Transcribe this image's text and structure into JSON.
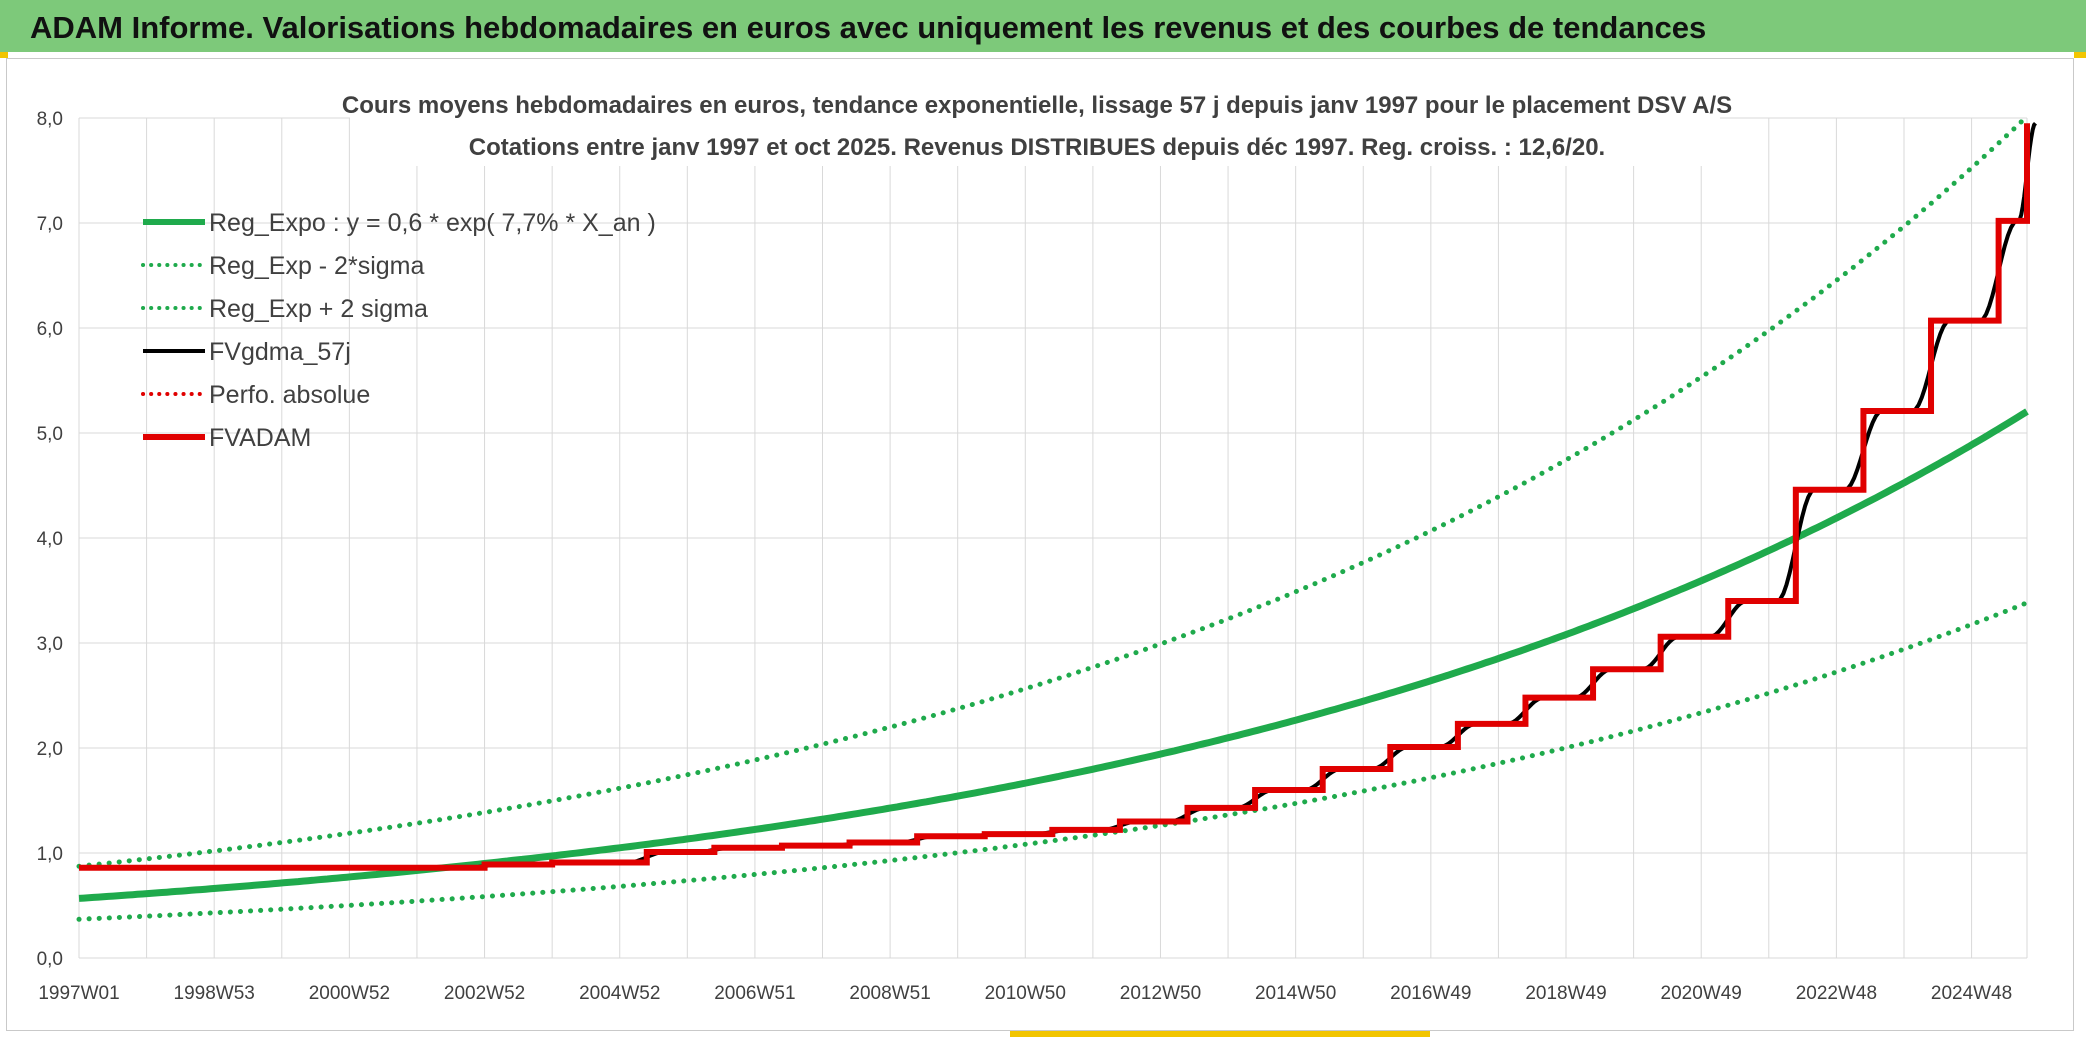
{
  "banner": {
    "title": "ADAM Informe. Valorisations hebdomadaires en euros avec uniquement les revenus et des courbes de tendances"
  },
  "chart_data": {
    "type": "line",
    "title": "Cours moyens hebdomadaires en euros, tendance exponentielle, lissage 57 j depuis janv 1997 pour le placement DSV A/S",
    "subtitle": "Cotations entre janv 1997 et oct 2025. Revenus DISTRIBUES depuis déc 1997. Reg. croiss. : 12,6/20.",
    "xlabel": "",
    "ylabel": "",
    "xlim": [
      1997.0,
      2025.82
    ],
    "ylim": [
      0,
      8
    ],
    "y_ticks": [
      "0,0",
      "1,0",
      "2,0",
      "3,0",
      "4,0",
      "5,0",
      "6,0",
      "7,0",
      "8,0"
    ],
    "x_ticks": [
      {
        "label": "1997W01",
        "x": 1997.0
      },
      {
        "label": "1998W53",
        "x": 1999.0
      },
      {
        "label": "2000W52",
        "x": 2001.0
      },
      {
        "label": "2002W52",
        "x": 2003.0
      },
      {
        "label": "2004W52",
        "x": 2005.0
      },
      {
        "label": "2006W51",
        "x": 2007.0
      },
      {
        "label": "2008W51",
        "x": 2009.0
      },
      {
        "label": "2010W50",
        "x": 2011.0
      },
      {
        "label": "2012W50",
        "x": 2013.0
      },
      {
        "label": "2014W50",
        "x": 2015.0
      },
      {
        "label": "2016W49",
        "x": 2017.0
      },
      {
        "label": "2018W49",
        "x": 2019.0
      },
      {
        "label": "2020W49",
        "x": 2021.0
      },
      {
        "label": "2022W48",
        "x": 2023.0
      },
      {
        "label": "2024W48",
        "x": 2025.0
      }
    ],
    "grid": true,
    "legend_position": "top-left",
    "regression": {
      "a": 0.5674,
      "rate": 0.0769,
      "lower_factor": 0.65,
      "upper_factor": 1.54
    },
    "series": [
      {
        "name": "Reg_Expo : y = 0,6 * exp( 7,7% *  X_an )",
        "color": "#1faa4c",
        "style": "solid-thick",
        "kind": "reg"
      },
      {
        "name": "Reg_Exp - 2*sigma",
        "color": "#1faa4c",
        "style": "dotted",
        "kind": "reg_low"
      },
      {
        "name": "Reg_Exp + 2 sigma",
        "color": "#1faa4c",
        "style": "dotted",
        "kind": "reg_high"
      },
      {
        "name": "FVgdma_57j",
        "color": "#000000",
        "style": "solid",
        "kind": "smoothed"
      },
      {
        "name": "Perfo. absolue",
        "color": "#e00000",
        "style": "dotted",
        "kind": "perf"
      },
      {
        "name": "FVADAM",
        "color": "#e00000",
        "style": "solid-thick",
        "kind": "step"
      }
    ],
    "fvadam_steps": [
      {
        "x": 1997.0,
        "y": 0.86
      },
      {
        "x": 2003.0,
        "y": 0.89
      },
      {
        "x": 2004.0,
        "y": 0.91
      },
      {
        "x": 2005.4,
        "y": 1.01
      },
      {
        "x": 2006.4,
        "y": 1.05
      },
      {
        "x": 2007.4,
        "y": 1.07
      },
      {
        "x": 2008.4,
        "y": 1.1
      },
      {
        "x": 2009.4,
        "y": 1.16
      },
      {
        "x": 2010.4,
        "y": 1.18
      },
      {
        "x": 2011.4,
        "y": 1.22
      },
      {
        "x": 2012.4,
        "y": 1.3
      },
      {
        "x": 2013.4,
        "y": 1.43
      },
      {
        "x": 2014.4,
        "y": 1.6
      },
      {
        "x": 2015.4,
        "y": 1.8
      },
      {
        "x": 2016.4,
        "y": 2.01
      },
      {
        "x": 2017.4,
        "y": 2.23
      },
      {
        "x": 2018.4,
        "y": 2.48
      },
      {
        "x": 2019.4,
        "y": 2.75
      },
      {
        "x": 2020.4,
        "y": 3.06
      },
      {
        "x": 2021.4,
        "y": 3.4
      },
      {
        "x": 2022.4,
        "y": 4.46
      },
      {
        "x": 2023.4,
        "y": 5.21
      },
      {
        "x": 2024.4,
        "y": 6.07
      },
      {
        "x": 2025.4,
        "y": 7.02
      },
      {
        "x": 2025.82,
        "y": 7.95
      }
    ]
  }
}
